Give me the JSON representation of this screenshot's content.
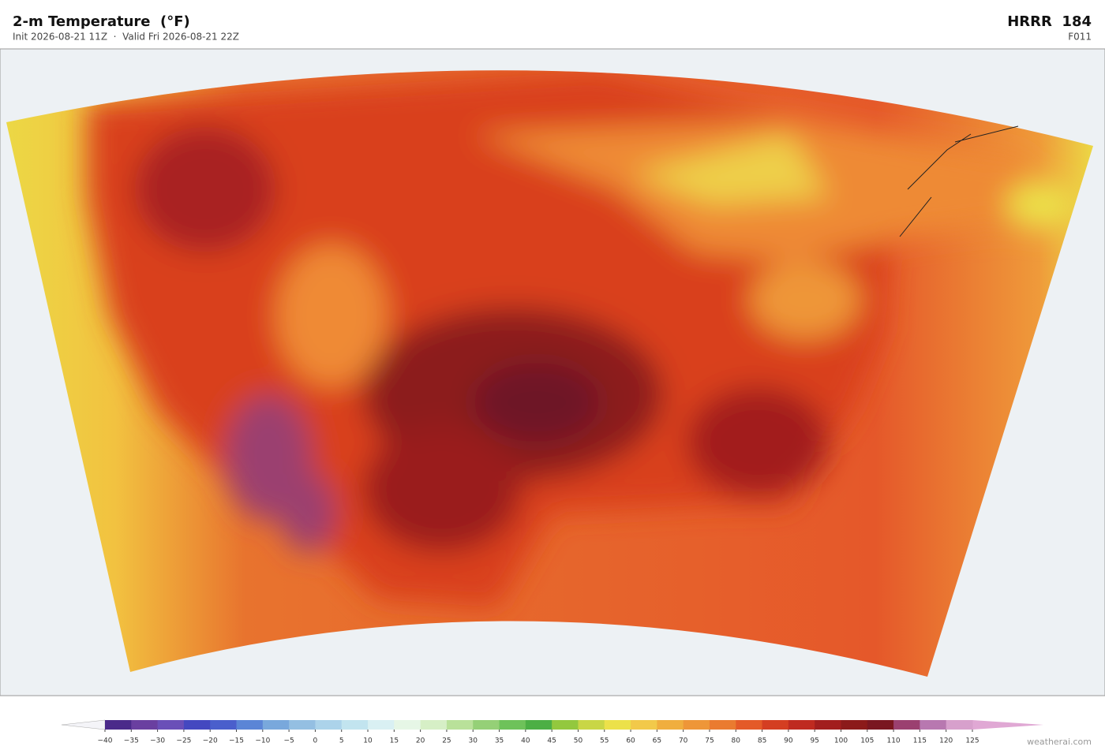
{
  "header": {
    "title": "2-m Temperature  (°F)",
    "subtitle": "Init 2026-08-21 11Z  ·  Valid Fri 2026-08-21 22Z",
    "model": "HRRR  184",
    "frame": "F011"
  },
  "colorbar": {
    "lim": [
      -40,
      125
    ],
    "ticks": [
      {
        "value": -40,
        "label": "−40"
      },
      {
        "value": -35,
        "label": "−35"
      },
      {
        "value": -30,
        "label": "−30"
      },
      {
        "value": -25,
        "label": "−25"
      },
      {
        "value": -20,
        "label": "−20"
      },
      {
        "value": -15,
        "label": "−15"
      },
      {
        "value": -10,
        "label": "−10"
      },
      {
        "value": -5,
        "label": "−5"
      },
      0,
      5,
      10,
      15,
      20,
      25,
      30,
      35,
      40,
      45,
      50,
      55,
      60,
      65,
      70,
      75,
      80,
      85,
      90,
      95,
      100,
      105,
      110,
      115,
      120,
      125
    ],
    "colors": [
      "#4b2a8a",
      "#6a3fa0",
      "#6a4fb8",
      "#4448c0",
      "#4a5fcc",
      "#5b85d6",
      "#79a8dc",
      "#94bfe2",
      "#acd3ea",
      "#c2e4ef",
      "#d9f0f3",
      "#e6f6e6",
      "#d6efc6",
      "#b9e19a",
      "#95d077",
      "#6ec25a",
      "#4caf45",
      "#93c83e",
      "#c9d646",
      "#ece14a",
      "#f2c94a",
      "#f0ae3e",
      "#ee9638",
      "#ea7b30",
      "#e45a28",
      "#d43e22",
      "#bf2a20",
      "#a21e1e",
      "#8c1a1a",
      "#7a1620",
      "#9b4070",
      "#b878b0",
      "#d7a0cc"
    ],
    "under_color": "#f4f4f8",
    "over_color": "#e0a8d4"
  },
  "footer": {
    "credit": "weatherai.com"
  }
}
